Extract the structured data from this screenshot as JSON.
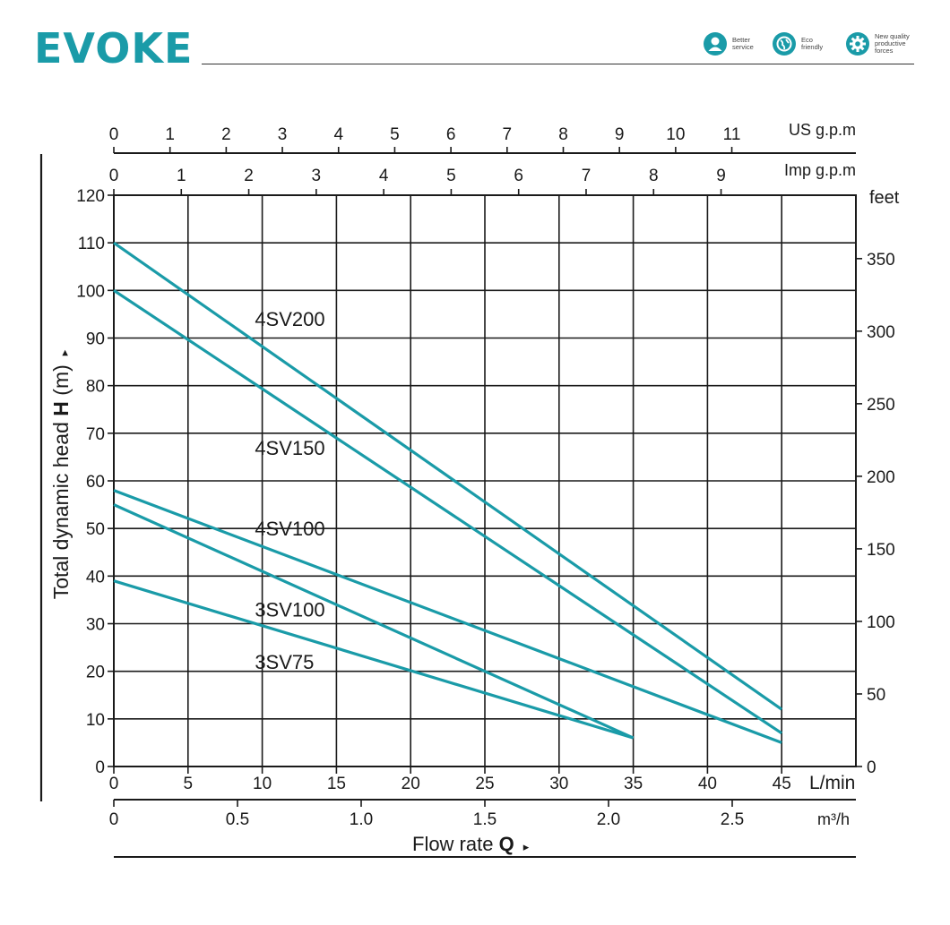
{
  "header": {
    "logo": "EVOKE",
    "brand_color": "#1a9ba8",
    "badges": [
      {
        "icon": "person-service-icon",
        "lines": [
          "Better",
          "service"
        ]
      },
      {
        "icon": "globe-eco-icon",
        "lines": [
          "Eco",
          "friendly"
        ]
      },
      {
        "icon": "gear-quality-icon",
        "lines": [
          "New quality",
          "productive",
          "forces"
        ]
      }
    ]
  },
  "chart_data": {
    "type": "line",
    "line_color": "#1a9ba8",
    "grid": true,
    "ylabel_prefix": "Total dynamic head ",
    "ylabel_bold": "H",
    "ylabel_suffix": " (m)",
    "ylabel_arrow": "▸",
    "xlabel_prefix": "Flow rate ",
    "xlabel_bold": "Q",
    "xlabel_arrow": "▸",
    "x_primary": {
      "unit": "L/min",
      "range": [
        0,
        50
      ],
      "ticks": [
        "0",
        "5",
        "10",
        "15",
        "20",
        "25",
        "30",
        "35",
        "40",
        "45"
      ]
    },
    "x_m3h": {
      "unit": "m³/h",
      "ticks": [
        {
          "value": 0,
          "label": "0"
        },
        {
          "value": 0.5,
          "label": "0.5"
        },
        {
          "value": 1.0,
          "label": "1.0"
        },
        {
          "value": 1.5,
          "label": "1.5"
        },
        {
          "value": 2.0,
          "label": "2.0"
        },
        {
          "value": 2.5,
          "label": "2.5"
        }
      ]
    },
    "x_usgpm": {
      "unit": "US g.p.m",
      "ticks": [
        {
          "value": 0,
          "label": "0"
        },
        {
          "value": 1,
          "label": "1"
        },
        {
          "value": 2,
          "label": "2"
        },
        {
          "value": 3,
          "label": "3"
        },
        {
          "value": 4,
          "label": "4"
        },
        {
          "value": 5,
          "label": "5"
        },
        {
          "value": 6,
          "label": "6"
        },
        {
          "value": 7,
          "label": "7"
        },
        {
          "value": 8,
          "label": "8"
        },
        {
          "value": 9,
          "label": "9"
        },
        {
          "value": 10,
          "label": "10"
        },
        {
          "value": 11,
          "label": "11"
        }
      ]
    },
    "x_impgpm": {
      "unit": "Imp g.p.m",
      "ticks": [
        {
          "value": 0,
          "label": "0"
        },
        {
          "value": 1,
          "label": "1"
        },
        {
          "value": 2,
          "label": "2"
        },
        {
          "value": 3,
          "label": "3"
        },
        {
          "value": 4,
          "label": "4"
        },
        {
          "value": 5,
          "label": "5"
        },
        {
          "value": 6,
          "label": "6"
        },
        {
          "value": 7,
          "label": "7"
        },
        {
          "value": 8,
          "label": "8"
        },
        {
          "value": 9,
          "label": "9"
        }
      ]
    },
    "y_primary": {
      "unit": "m",
      "range": [
        0,
        120
      ],
      "ticks": [
        "0",
        "10",
        "20",
        "30",
        "40",
        "50",
        "60",
        "70",
        "80",
        "90",
        "100",
        "110",
        "120"
      ]
    },
    "y_feet": {
      "unit": "feet",
      "ticks": [
        {
          "value": 0,
          "label": "0"
        },
        {
          "value": 50,
          "label": "50"
        },
        {
          "value": 100,
          "label": "100"
        },
        {
          "value": 150,
          "label": "150"
        },
        {
          "value": 200,
          "label": "200"
        },
        {
          "value": 250,
          "label": "250"
        },
        {
          "value": 300,
          "label": "300"
        },
        {
          "value": 350,
          "label": "350"
        }
      ]
    },
    "series": [
      {
        "name": "4SV200",
        "label_at": [
          9.5,
          94
        ],
        "points": [
          [
            0,
            110
          ],
          [
            45,
            12
          ]
        ]
      },
      {
        "name": "4SV150",
        "label_at": [
          9.5,
          67
        ],
        "points": [
          [
            0,
            100
          ],
          [
            45,
            7
          ]
        ]
      },
      {
        "name": "4SV100",
        "label_at": [
          9.5,
          50
        ],
        "points": [
          [
            0,
            58
          ],
          [
            45,
            5
          ]
        ]
      },
      {
        "name": "3SV100",
        "label_at": [
          9.5,
          33
        ],
        "points": [
          [
            0,
            55
          ],
          [
            35,
            6
          ]
        ]
      },
      {
        "name": "3SV75",
        "label_at": [
          9.5,
          22
        ],
        "points": [
          [
            0,
            39
          ],
          [
            35,
            6
          ]
        ]
      }
    ]
  }
}
